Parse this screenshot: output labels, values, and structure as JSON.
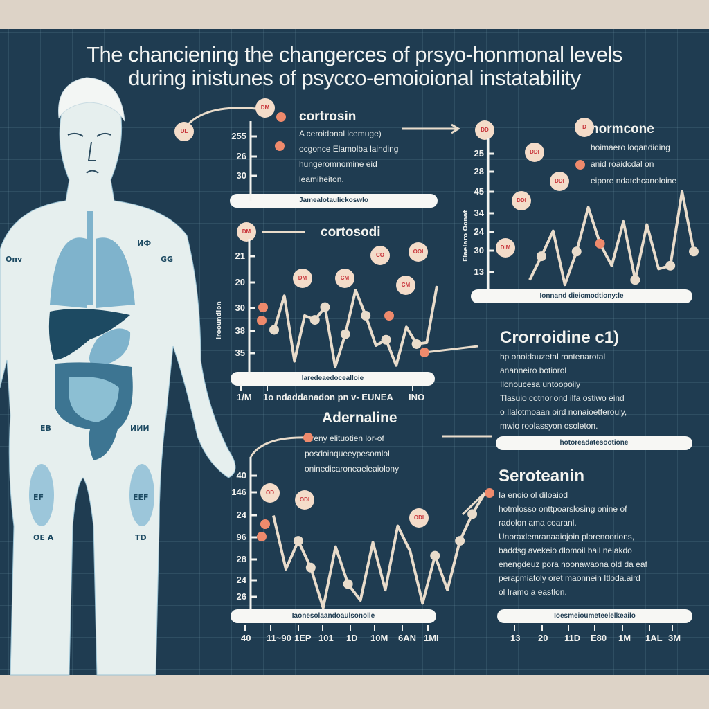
{
  "title": {
    "line1": "The chanciening the changerces of prsyo-honmonal levels",
    "line2": "during inistunes of psycco-emoioional instatability"
  },
  "colors": {
    "panel": "#1f3c51",
    "frame": "#ddd3c7",
    "line": "#e9dccb",
    "marker": "#ef8a6c",
    "badge": "#f4dcc9",
    "badge_text": "#c8343a",
    "organ": "#7fb3cc"
  },
  "body": {
    "labels": [
      "Oпv",
      "ИФ",
      "GG",
      "EB",
      "ИИИ",
      "EF",
      "EЕF",
      "OE A",
      "TD"
    ]
  },
  "cortrosin": {
    "title": "cortrosin",
    "lines": [
      "A ceroidonal icemuge)",
      "ocgonce Elamolba lainding",
      "hungeromnomine eid",
      "leamiheiton."
    ],
    "ticks": [
      "255",
      "26",
      "30"
    ],
    "pill": "Jamealotaulickoswlo",
    "badges": [
      "DL",
      "DM"
    ]
  },
  "hormcone": {
    "title": "hormcone",
    "lines": [
      "hoimaero loqandiding",
      "anid roaidcdal on",
      "eipore ndatchcanoloine"
    ],
    "ticks": [
      "25",
      "28",
      "45",
      "34",
      "24",
      "30",
      "13"
    ],
    "ylabel": "Elaelaro Oonat",
    "pill": "Ionnand dieicmodtiony:le",
    "badges": [
      "DD",
      "D",
      "DDI",
      "DDI",
      "DDI",
      "DIM"
    ],
    "levels": [
      0.06,
      0.21,
      0.37,
      0.03,
      0.24,
      0.52,
      0.29,
      0.15,
      0.43,
      0.06,
      0.41,
      0.13,
      0.15,
      0.62,
      0.24
    ],
    "markers": [
      1,
      4,
      9,
      12,
      14
    ],
    "orange": [
      6
    ]
  },
  "cortosodi": {
    "title": "cortosodi",
    "ticks": [
      "21",
      "20",
      "30",
      "38",
      "35"
    ],
    "ylabel": "lrooundlon",
    "pill": "Iaredeaedocealloie",
    "xlabels": [
      "1/M",
      "1o ndaddanadon pn v- EUNEA",
      "INO"
    ],
    "badges": [
      "DM",
      "DM",
      "CM",
      "CO",
      "OOI",
      "CM"
    ],
    "levels": [
      0.31,
      0.55,
      0.09,
      0.41,
      0.38,
      0.47,
      0.05,
      0.28,
      0.59,
      0.41,
      0.2,
      0.24,
      0.06,
      0.33,
      0.21,
      0.22,
      0.62
    ],
    "markers": [
      0,
      4,
      5,
      7,
      9,
      11,
      14
    ],
    "orange": []
  },
  "adernaline": {
    "title": "Adernaline",
    "lines": [
      "alreny elituotien lor-of",
      "posdoinqueeypesomlol",
      "oninedicaroneaeleaiolony"
    ],
    "ticks": [
      "40",
      "146",
      "24",
      "96",
      "28",
      "24",
      "26"
    ],
    "pill": "Iaonesolaandoaulsonolle",
    "xlabels": [
      "40",
      "11~90",
      "1EP",
      "101",
      "1D",
      "10M",
      "6AN",
      "1MI"
    ],
    "badges": [
      "OD",
      "ODI",
      "ODI"
    ],
    "levels": [
      0.63,
      0.27,
      0.46,
      0.28,
      0.01,
      0.42,
      0.17,
      0.06,
      0.45,
      0.13,
      0.56,
      0.39,
      0.04,
      0.36,
      0.13,
      0.46,
      0.64,
      0.78
    ],
    "markers": [
      2,
      3,
      6,
      13,
      15,
      16
    ],
    "orange": []
  },
  "crorroidine": {
    "title": "Crorroidine c1)",
    "lines": [
      "hp onoidauzetal rontenarotal",
      "ananneiro botiorol",
      "Ilonoucesa untoopoily",
      "Tlasuio cotnor'ond ilfa ostiwo eind",
      "o Ilalotmoaan oird nonaioetferouly,",
      "mwio roolassyon osoleton."
    ],
    "pill": "hotoreadatesootione"
  },
  "seroteanin": {
    "title": "Seroteanin",
    "lines": [
      "Ia enoio ol diloaiod",
      "hotmlosso onttpoarslosing onine of",
      "radolon ama coaranl.",
      "Unoraxlemranaaiojoin plorenoorions,",
      "baddsg avekeio dlomoil bail neiakdo",
      "enengdeuz pora noonawaona old da eaf",
      "perapmiatoly oret maonnein Itloda.aird",
      "ol Iramo a eastlon."
    ],
    "pill": "Ioesmeioumeteelelkeailo",
    "xlabels": [
      "13",
      "20",
      "11D",
      "E80",
      "1M",
      "1AL",
      "3M"
    ]
  }
}
